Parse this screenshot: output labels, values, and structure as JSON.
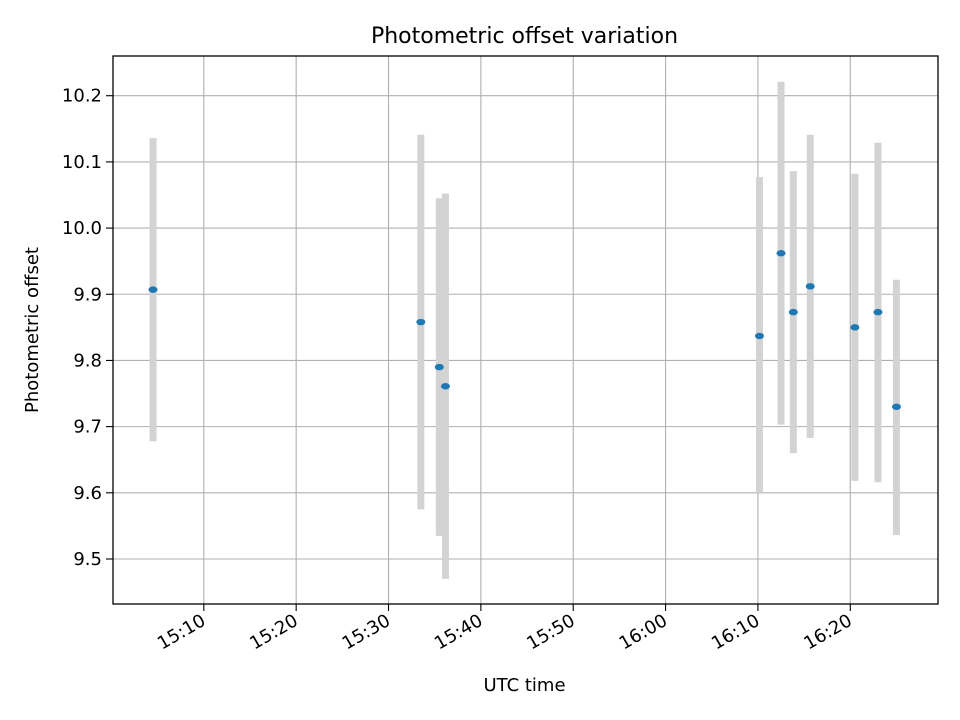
{
  "chart_data": {
    "type": "scatter",
    "title": "Photometric offset variation",
    "xlabel": "UTC time",
    "ylabel": "Photometric offset",
    "xlim": [
      "15:00:10",
      "16:29:30"
    ],
    "ylim": [
      9.432,
      10.26
    ],
    "grid": true,
    "x_ticks": [
      "15:10",
      "15:20",
      "15:30",
      "15:40",
      "15:50",
      "16:00",
      "16:10",
      "16:20"
    ],
    "y_ticks": [
      "9.5",
      "9.6",
      "9.7",
      "9.8",
      "9.9",
      "10.0",
      "10.1",
      "10.2"
    ],
    "series": [
      {
        "points": [
          {
            "x": "15:04:30",
            "y": 9.907,
            "yerr_low": 9.678,
            "yerr_high": 10.136
          },
          {
            "x": "15:33:30",
            "y": 9.858,
            "yerr_low": 9.575,
            "yerr_high": 10.141
          },
          {
            "x": "15:35:30",
            "y": 9.79,
            "yerr_low": 9.535,
            "yerr_high": 10.045
          },
          {
            "x": "15:36:10",
            "y": 9.761,
            "yerr_low": 9.47,
            "yerr_high": 10.052
          },
          {
            "x": "16:10:10",
            "y": 9.837,
            "yerr_low": 9.6,
            "yerr_high": 10.077
          },
          {
            "x": "16:12:30",
            "y": 9.962,
            "yerr_low": 9.703,
            "yerr_high": 10.221
          },
          {
            "x": "16:13:50",
            "y": 9.873,
            "yerr_low": 9.66,
            "yerr_high": 10.086
          },
          {
            "x": "16:15:40",
            "y": 9.912,
            "yerr_low": 9.683,
            "yerr_high": 10.141
          },
          {
            "x": "16:20:30",
            "y": 9.85,
            "yerr_low": 9.618,
            "yerr_high": 10.082
          },
          {
            "x": "16:23:00",
            "y": 9.873,
            "yerr_low": 9.616,
            "yerr_high": 10.129
          },
          {
            "x": "16:25:00",
            "y": 9.73,
            "yerr_low": 9.536,
            "yerr_high": 9.922
          }
        ]
      }
    ],
    "marker_color": "#1f77b4",
    "errorbar_color": "#d3d3d3"
  }
}
